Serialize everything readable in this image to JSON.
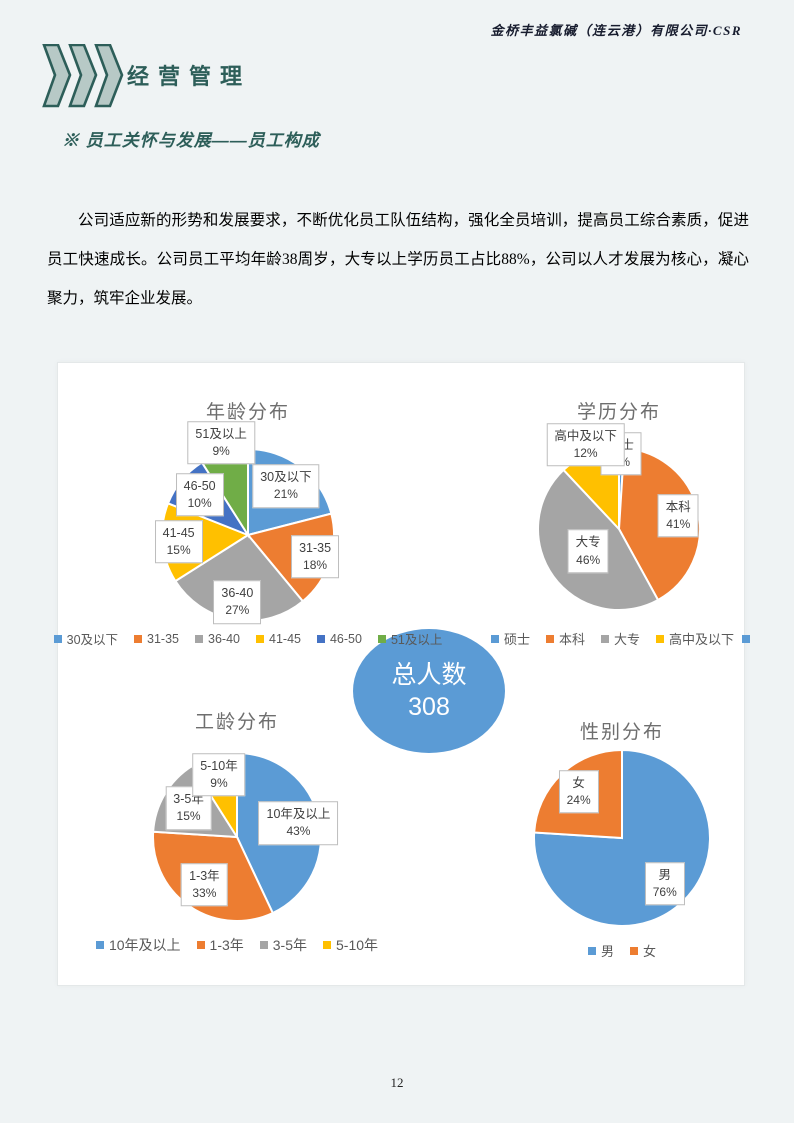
{
  "header": {
    "company": "金桥丰益氯碱（连云港）有限公司·CSR"
  },
  "section": {
    "title": "经营管理",
    "subtitle": "※ 员工关怀与发展——员工构成"
  },
  "paragraph": "公司适应新的形势和发展要求，不断优化员工队伍结构，强化全员培训，提高员工综合素质，促进员工快速成长。公司员工平均年龄38周岁，大专以上学历员工占比88%，公司以人才发展为核心，凝心聚力，筑牢企业发展。",
  "total_badge": {
    "label": "总人数",
    "value": "308",
    "color": "#5b9bd5"
  },
  "page_number": "12",
  "colors": {
    "accent_teal": "#2d5e59",
    "chevron_fill": "#b7c9c6",
    "page_bg": "#eff3f4",
    "panel_bg": "#ffffff",
    "badge_blue": "#5b9bd5"
  },
  "chart_data": [
    {
      "type": "pie",
      "title": "年龄分布",
      "categories": [
        "30及以下",
        "31-35",
        "36-40",
        "41-45",
        "46-50",
        "51及以上"
      ],
      "values": [
        21,
        18,
        27,
        15,
        10,
        9
      ],
      "unit": "%",
      "colors": [
        "#5B9BD5",
        "#ED7D31",
        "#A5A5A5",
        "#FFC000",
        "#4472C4",
        "#70AD47"
      ],
      "legend_position": "bottom"
    },
    {
      "type": "pie",
      "title": "学历分布",
      "categories": [
        "硕士",
        "本科",
        "大专",
        "高中及以下"
      ],
      "values": [
        1,
        41,
        46,
        12
      ],
      "unit": "%",
      "colors": [
        "#5B9BD5",
        "#ED7D31",
        "#A5A5A5",
        "#FFC000"
      ],
      "legend_position": "bottom",
      "legend_trailing_marker": "#5B9BD5"
    },
    {
      "type": "pie",
      "title": "工龄分布",
      "categories": [
        "10年及以上",
        "1-3年",
        "3-5年",
        "5-10年"
      ],
      "values": [
        43,
        33,
        15,
        9
      ],
      "unit": "%",
      "colors": [
        "#5B9BD5",
        "#ED7D31",
        "#A5A5A5",
        "#FFC000"
      ],
      "legend_position": "bottom"
    },
    {
      "type": "pie",
      "title": "性别分布",
      "categories": [
        "男",
        "女"
      ],
      "values": [
        76,
        24
      ],
      "unit": "%",
      "colors": [
        "#5B9BD5",
        "#ED7D31"
      ],
      "legend_position": "bottom"
    }
  ]
}
